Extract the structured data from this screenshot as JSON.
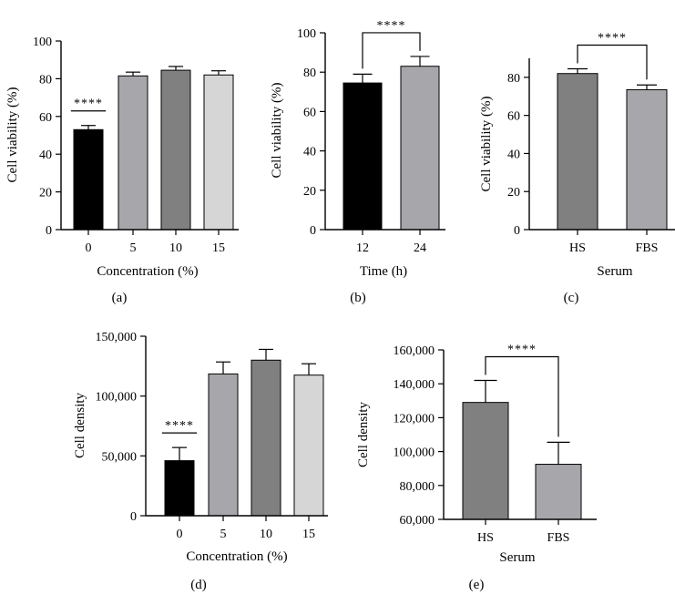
{
  "chart_data": [
    {
      "panel": "(a)",
      "type": "bar",
      "categories": [
        "0",
        "5",
        "10",
        "15"
      ],
      "values": [
        53,
        81.5,
        84.5,
        82
      ],
      "errors": [
        2.2,
        2,
        2,
        2.2
      ],
      "colors": [
        "#000000",
        "#a7a7ab",
        "#808080",
        "#d6d6d6"
      ],
      "xlabel": "Concentration (%)",
      "ylabel": "Cell viability (%)",
      "ylim": [
        0,
        100
      ],
      "yticks": [
        0,
        20,
        40,
        60,
        80,
        100
      ],
      "ytick_labels": [
        "0",
        "20",
        "40",
        "60",
        "80",
        "100"
      ],
      "significance": [
        {
          "label": "****",
          "style": "line-above-bar",
          "bar": 0
        }
      ]
    },
    {
      "panel": "(b)",
      "type": "bar",
      "categories": [
        "12",
        "24"
      ],
      "values": [
        74.5,
        83
      ],
      "errors": [
        4.5,
        5
      ],
      "colors": [
        "#000000",
        "#a7a7ab"
      ],
      "xlabel": "Time (h)",
      "ylabel": "Cell viability (%)",
      "ylim": [
        0,
        100
      ],
      "yticks": [
        0,
        20,
        40,
        60,
        80,
        100
      ],
      "ytick_labels": [
        "0",
        "20",
        "40",
        "60",
        "80",
        "100"
      ],
      "significance": [
        {
          "label": "****",
          "style": "bracket",
          "bars": [
            0,
            1
          ]
        }
      ]
    },
    {
      "panel": "(c)",
      "type": "bar",
      "categories": [
        "HS",
        "FBS"
      ],
      "values": [
        82,
        73.5
      ],
      "errors": [
        2.5,
        2.5
      ],
      "colors": [
        "#808080",
        "#a7a7ab"
      ],
      "xlabel": "Serum",
      "ylabel": "Cell viability (%)",
      "ylim": [
        0,
        90
      ],
      "yticks": [
        0,
        20,
        40,
        60,
        80
      ],
      "ytick_labels": [
        "0",
        "20",
        "40",
        "60",
        "80"
      ],
      "significance": [
        {
          "label": "****",
          "style": "bracket",
          "bars": [
            0,
            1
          ]
        }
      ]
    },
    {
      "panel": "(d)",
      "type": "bar",
      "categories": [
        "0",
        "5",
        "10",
        "15"
      ],
      "values": [
        46000,
        118500,
        130000,
        117500
      ],
      "errors": [
        11000,
        10000,
        9000,
        9500
      ],
      "colors": [
        "#000000",
        "#a7a7ab",
        "#808080",
        "#d6d6d6"
      ],
      "xlabel": "Concentration (%)",
      "ylabel": "Cell density",
      "ylim": [
        0,
        150000
      ],
      "yticks": [
        0,
        50000,
        100000,
        150000
      ],
      "ytick_labels": [
        "0",
        "50,000",
        "100,000",
        "150,000"
      ],
      "significance": [
        {
          "label": "****",
          "style": "line-above-bar",
          "bar": 0
        }
      ]
    },
    {
      "panel": "(e)",
      "type": "bar",
      "categories": [
        "HS",
        "FBS"
      ],
      "values": [
        129000,
        92500
      ],
      "errors": [
        13000,
        13000
      ],
      "colors": [
        "#808080",
        "#a7a7ab"
      ],
      "xlabel": "Serum",
      "ylabel": "Cell density",
      "ylim": [
        60000,
        160000
      ],
      "yticks": [
        60000,
        80000,
        100000,
        120000,
        140000,
        160000
      ],
      "ytick_labels": [
        "60,000",
        "80,000",
        "100,000",
        "120,000",
        "140,000",
        "160,000"
      ],
      "significance": [
        {
          "label": "****",
          "style": "bracket",
          "bars": [
            0,
            1
          ]
        }
      ]
    }
  ]
}
